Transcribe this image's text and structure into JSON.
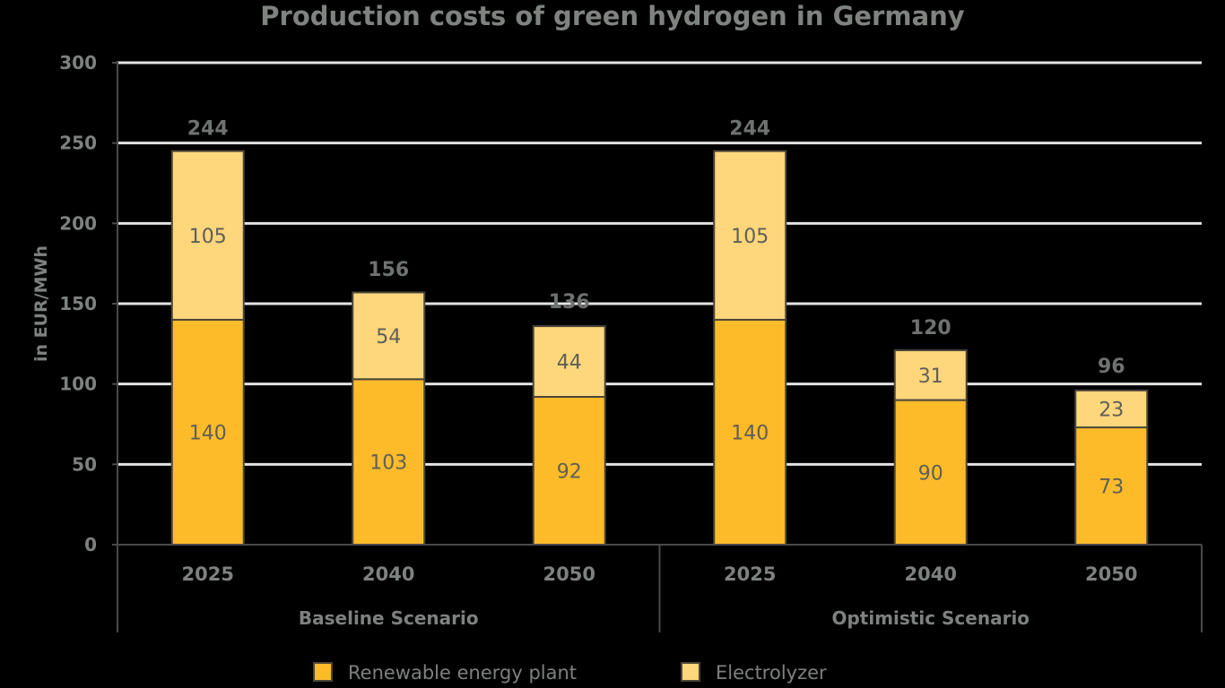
{
  "chart_data": {
    "type": "bar",
    "stacked": true,
    "title": "Production costs of green hydrogen in Germany",
    "xlabel": "",
    "ylabel": "in EUR/MWh",
    "ylim": [
      0,
      300
    ],
    "yticks": [
      0,
      50,
      100,
      150,
      200,
      250,
      300
    ],
    "grid": true,
    "legend_position": "bottom",
    "groups": [
      {
        "label": "Baseline Scenario",
        "categories": [
          "2025",
          "2040",
          "2050"
        ]
      },
      {
        "label": "Optimistic Scenario",
        "categories": [
          "2025",
          "2040",
          "2050"
        ]
      }
    ],
    "categories": [
      "2025",
      "2040",
      "2050",
      "2025",
      "2040",
      "2050"
    ],
    "series": [
      {
        "name": "Renewable energy plant",
        "color": "#fdbb2a",
        "values": [
          140,
          103,
          92,
          140,
          90,
          73
        ]
      },
      {
        "name": "Electrolyzer",
        "color": "#fed67c",
        "values": [
          105,
          54,
          44,
          105,
          31,
          23
        ]
      }
    ],
    "totals": [
      244,
      156,
      136,
      244,
      120,
      96
    ]
  }
}
